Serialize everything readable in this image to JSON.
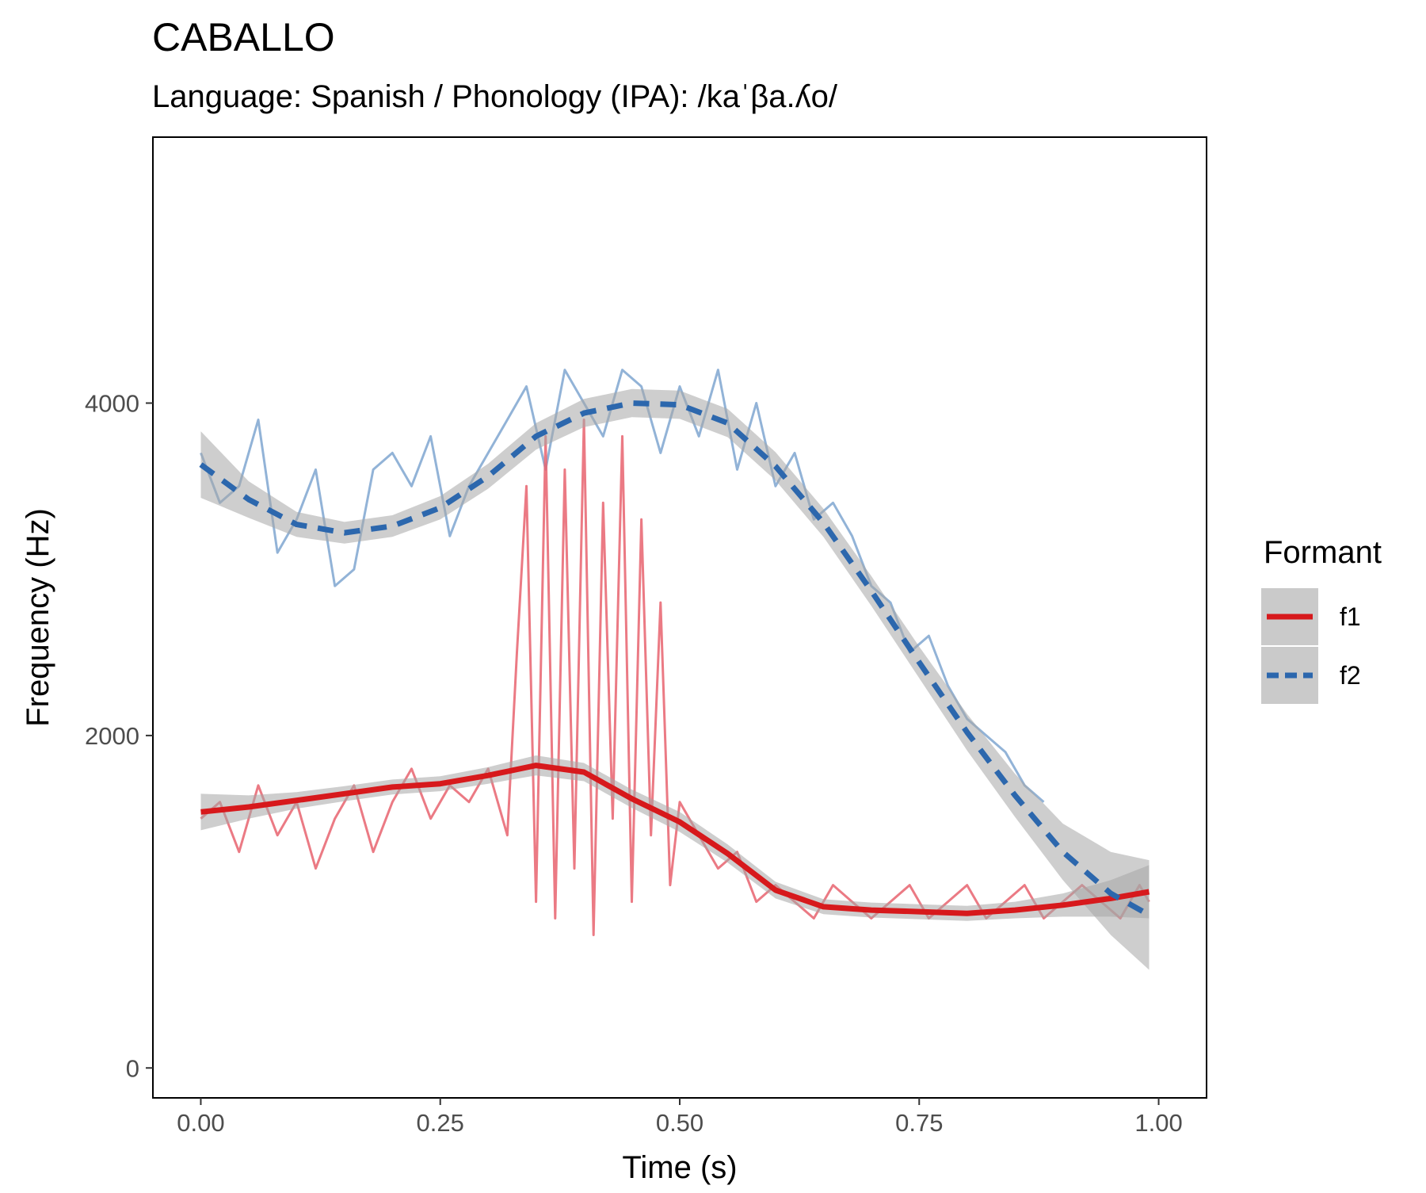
{
  "chart_data": {
    "type": "line",
    "title": "CABALLO",
    "subtitle": "Language: Spanish / Phonology (IPA): /kaˈβa.ʎo/",
    "xlabel": "Time (s)",
    "ylabel": "Frequency (Hz)",
    "xlim": [
      -0.05,
      1.05
    ],
    "ylim": [
      -180,
      5600
    ],
    "x_ticks": [
      0.0,
      0.25,
      0.5,
      0.75,
      1.0
    ],
    "x_tick_labels": [
      "0.00",
      "0.25",
      "0.50",
      "0.75",
      "1.00"
    ],
    "y_ticks": [
      0,
      2000,
      4000
    ],
    "y_tick_labels": [
      "0",
      "2000",
      "4000"
    ],
    "grid": false,
    "legend": {
      "title": "Formant",
      "placement": "right",
      "entries": [
        {
          "label": "f1",
          "color": "#d7191c",
          "dash": "solid"
        },
        {
          "label": "f2",
          "color": "#2c67ad",
          "dash": "dashed"
        }
      ]
    },
    "colors": {
      "f1_raw": "#e8636f",
      "f2_raw": "#7fa6d0",
      "f1_smooth": "#d7191c",
      "f2_smooth": "#2c67ad",
      "confidence_band": "#a6a6a6"
    },
    "series": [
      {
        "name": "f1",
        "kind": "raw",
        "x": [
          0.0,
          0.02,
          0.04,
          0.06,
          0.08,
          0.1,
          0.12,
          0.14,
          0.16,
          0.18,
          0.2,
          0.22,
          0.24,
          0.26,
          0.28,
          0.3,
          0.32,
          0.33,
          0.34,
          0.35,
          0.36,
          0.37,
          0.38,
          0.39,
          0.4,
          0.41,
          0.42,
          0.43,
          0.44,
          0.45,
          0.46,
          0.47,
          0.48,
          0.49,
          0.5,
          0.52,
          0.54,
          0.56,
          0.58,
          0.6,
          0.62,
          0.64,
          0.66,
          0.68,
          0.7,
          0.72,
          0.74,
          0.76,
          0.78,
          0.8,
          0.82,
          0.84,
          0.86,
          0.88,
          0.9,
          0.92,
          0.94,
          0.96,
          0.98,
          0.99
        ],
        "y": [
          1500,
          1600,
          1300,
          1700,
          1400,
          1600,
          1200,
          1500,
          1700,
          1300,
          1600,
          1800,
          1500,
          1700,
          1600,
          1800,
          1400,
          2500,
          3500,
          1000,
          3800,
          900,
          3600,
          1200,
          3900,
          800,
          3400,
          1500,
          3800,
          1000,
          3300,
          1400,
          2800,
          1100,
          1600,
          1400,
          1200,
          1300,
          1000,
          1100,
          1000,
          900,
          1100,
          1000,
          900,
          1000,
          1100,
          900,
          1000,
          1100,
          900,
          1000,
          1100,
          900,
          1000,
          1100,
          1000,
          900,
          1100,
          1000
        ]
      },
      {
        "name": "f2",
        "kind": "raw",
        "x": [
          0.0,
          0.02,
          0.04,
          0.06,
          0.08,
          0.1,
          0.12,
          0.14,
          0.16,
          0.18,
          0.2,
          0.22,
          0.24,
          0.26,
          0.28,
          0.3,
          0.32,
          0.34,
          0.36,
          0.38,
          0.4,
          0.42,
          0.44,
          0.46,
          0.48,
          0.5,
          0.52,
          0.54,
          0.56,
          0.58,
          0.6,
          0.62,
          0.64,
          0.66,
          0.68,
          0.7,
          0.72,
          0.74,
          0.76,
          0.78,
          0.8,
          0.82,
          0.84,
          0.86,
          0.88
        ],
        "y": [
          3700,
          3400,
          3500,
          3900,
          3100,
          3300,
          3600,
          2900,
          3000,
          3600,
          3700,
          3500,
          3800,
          3200,
          3500,
          3700,
          3900,
          4100,
          3600,
          4200,
          4000,
          3800,
          4200,
          4100,
          3700,
          4100,
          3800,
          4200,
          3600,
          4000,
          3500,
          3700,
          3300,
          3400,
          3200,
          2900,
          2800,
          2500,
          2600,
          2300,
          2100,
          2000,
          1900,
          1700,
          1600
        ]
      },
      {
        "name": "f1",
        "kind": "smooth",
        "x": [
          0.0,
          0.05,
          0.1,
          0.15,
          0.2,
          0.25,
          0.3,
          0.35,
          0.4,
          0.45,
          0.5,
          0.55,
          0.6,
          0.65,
          0.7,
          0.75,
          0.8,
          0.85,
          0.9,
          0.95,
          0.99
        ],
        "y": [
          1540,
          1570,
          1610,
          1650,
          1690,
          1710,
          1760,
          1820,
          1780,
          1620,
          1480,
          1290,
          1070,
          970,
          950,
          940,
          930,
          950,
          980,
          1020,
          1060
        ],
        "band_half_width": [
          110,
          70,
          50,
          45,
          45,
          45,
          50,
          60,
          55,
          55,
          60,
          55,
          50,
          45,
          45,
          45,
          45,
          50,
          70,
          110,
          160
        ]
      },
      {
        "name": "f2",
        "kind": "smooth",
        "x": [
          0.0,
          0.05,
          0.1,
          0.15,
          0.2,
          0.25,
          0.3,
          0.35,
          0.4,
          0.45,
          0.5,
          0.55,
          0.6,
          0.65,
          0.7,
          0.75,
          0.8,
          0.85,
          0.9,
          0.95,
          0.99
        ],
        "y": [
          3630,
          3420,
          3270,
          3220,
          3260,
          3370,
          3560,
          3800,
          3940,
          4000,
          3990,
          3880,
          3620,
          3280,
          2870,
          2440,
          2020,
          1640,
          1300,
          1050,
          920
        ],
        "band_half_width": [
          200,
          110,
          75,
          65,
          65,
          70,
          75,
          80,
          85,
          85,
          85,
          85,
          85,
          85,
          90,
          95,
          110,
          130,
          170,
          250,
          330
        ]
      }
    ]
  }
}
